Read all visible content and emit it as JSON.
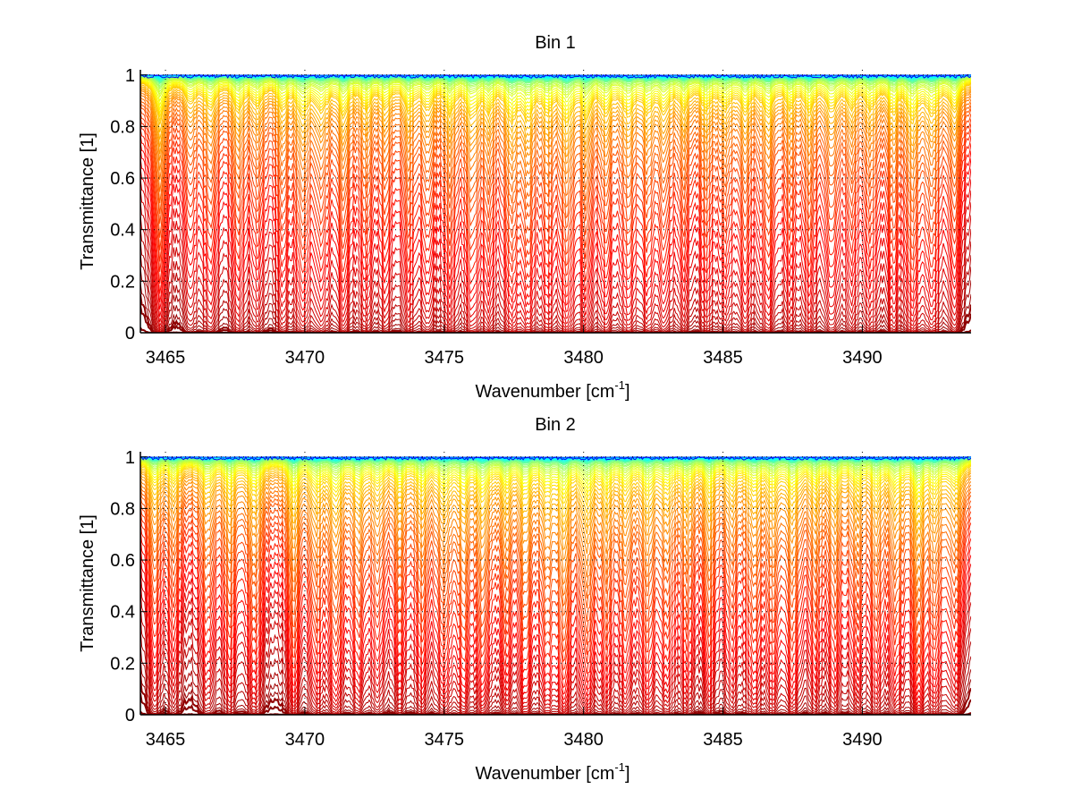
{
  "figure": {
    "background": "#ffffff"
  },
  "chart_data": [
    {
      "type": "line",
      "title": "Bin 1",
      "xlabel": "Wavenumber [cm^-1]",
      "xlabel_base": "Wavenumber [cm",
      "xlabel_sup": "-1",
      "xlabel_end": "]",
      "ylabel": "Transmittance [1]",
      "xlim": [
        3464.1,
        3493.9
      ],
      "ylim": [
        0,
        1.02
      ],
      "xticks": [
        3465,
        3470,
        3475,
        3480,
        3485,
        3490
      ],
      "xtick_labels": [
        "3465",
        "3470",
        "3475",
        "3480",
        "3485",
        "3490"
      ],
      "yticks": [
        0,
        0.2,
        0.4,
        0.6,
        0.8,
        1
      ],
      "ytick_labels": [
        "0",
        "0.2",
        "0.4",
        "0.6",
        "0.8",
        "1"
      ],
      "grid": "dotted",
      "legend": "none",
      "series_count": 60,
      "colormap": "jet (dark red = most absorbing, blue = least absorbing)",
      "colormap_stops": [
        "#00007f",
        "#0000ff",
        "#00ffff",
        "#7fff7f",
        "#ffff00",
        "#ff7f00",
        "#ff0000",
        "#7f0000"
      ],
      "line_centers": [
        3464.8,
        3465.9,
        3466.6,
        3467.6,
        3468.3,
        3469.2,
        3469.9,
        3470.6,
        3471.4,
        3472.2,
        3472.9,
        3473.7,
        3474.4,
        3475.2,
        3476.0,
        3476.6,
        3477.4,
        3478.0,
        3478.7,
        3479.4,
        3480.1,
        3480.8,
        3481.6,
        3482.3,
        3482.9,
        3483.6,
        3484.4,
        3485.1,
        3485.8,
        3486.6,
        3487.4,
        3488.1,
        3488.9,
        3489.6,
        3490.3,
        3491.1,
        3491.8,
        3492.5,
        3493.3
      ],
      "line_strengths": [
        1.6,
        0.8,
        1.0,
        1.1,
        0.9,
        1.0,
        1.3,
        1.1,
        1.2,
        1.0,
        0.9,
        1.0,
        0.9,
        1.1,
        1.3,
        1.0,
        1.4,
        1.3,
        1.0,
        1.5,
        1.3,
        1.1,
        1.2,
        1.0,
        1.1,
        1.0,
        1.0,
        0.9,
        1.1,
        1.3,
        0.9,
        1.1,
        1.0,
        0.9,
        1.0,
        1.1,
        1.4,
        1.2,
        1.1
      ],
      "continuum_levels": [
        0.0,
        0.01,
        0.02,
        0.035,
        0.06,
        0.09,
        0.12,
        0.16,
        0.2,
        0.25,
        0.3,
        0.35,
        0.4,
        0.45,
        0.5,
        0.54,
        0.58,
        0.62,
        0.66,
        0.69,
        0.72,
        0.75,
        0.78,
        0.8,
        0.82,
        0.84,
        0.86,
        0.875,
        0.89,
        0.9,
        0.91,
        0.92,
        0.93,
        0.94,
        0.945,
        0.95,
        0.955,
        0.96,
        0.965,
        0.97,
        0.975,
        0.978,
        0.981,
        0.984,
        0.986,
        0.988,
        0.99,
        0.991,
        0.992,
        0.993,
        0.994,
        0.995,
        0.996,
        0.997,
        0.998,
        0.9985,
        0.999,
        0.9993,
        0.9996,
        1.0
      ]
    },
    {
      "type": "line",
      "title": "Bin 2",
      "xlabel": "Wavenumber [cm^-1]",
      "xlabel_base": "Wavenumber [cm",
      "xlabel_sup": "-1",
      "xlabel_end": "]",
      "ylabel": "Transmittance [1]",
      "xlim": [
        3464.1,
        3493.9
      ],
      "ylim": [
        0,
        1.02
      ],
      "xticks": [
        3465,
        3470,
        3475,
        3480,
        3485,
        3490
      ],
      "xtick_labels": [
        "3465",
        "3470",
        "3475",
        "3480",
        "3485",
        "3490"
      ],
      "yticks": [
        0,
        0.2,
        0.4,
        0.6,
        0.8,
        1
      ],
      "ytick_labels": [
        "0",
        "0.2",
        "0.4",
        "0.6",
        "0.8",
        "1"
      ],
      "grid": "dotted",
      "legend": "none",
      "series_count": 60,
      "colormap": "jet (dark red = most absorbing, blue = least absorbing)",
      "colormap_stops": [
        "#00007f",
        "#0000ff",
        "#00ffff",
        "#7fff7f",
        "#ffff00",
        "#ff7f00",
        "#ff0000",
        "#7f0000"
      ],
      "line_centers": [
        3464.6,
        3465.3,
        3466.5,
        3467.3,
        3468.2,
        3469.6,
        3470.4,
        3471.1,
        3471.9,
        3472.6,
        3473.4,
        3474.2,
        3475.0,
        3475.7,
        3476.4,
        3477.2,
        3477.9,
        3478.7,
        3479.3,
        3480.1,
        3480.8,
        3481.5,
        3482.3,
        3483.0,
        3483.7,
        3484.5,
        3485.3,
        3486.1,
        3486.8,
        3487.5,
        3488.3,
        3489.0,
        3489.8,
        3490.5,
        3491.2,
        3492.0,
        3492.6,
        3493.3
      ],
      "line_strengths": [
        1.0,
        0.8,
        0.9,
        1.0,
        1.2,
        1.4,
        1.0,
        1.3,
        1.0,
        0.9,
        1.0,
        1.0,
        1.1,
        1.1,
        1.3,
        1.0,
        1.2,
        1.1,
        1.4,
        1.4,
        1.1,
        1.0,
        1.2,
        1.0,
        1.0,
        1.1,
        0.9,
        1.1,
        1.0,
        1.2,
        1.0,
        1.0,
        0.9,
        1.0,
        1.1,
        1.6,
        1.1,
        1.0
      ],
      "continuum_levels": [
        0.0,
        0.01,
        0.025,
        0.04,
        0.06,
        0.09,
        0.13,
        0.17,
        0.21,
        0.26,
        0.3,
        0.34,
        0.38,
        0.42,
        0.46,
        0.5,
        0.54,
        0.58,
        0.62,
        0.65,
        0.68,
        0.71,
        0.74,
        0.77,
        0.79,
        0.81,
        0.83,
        0.85,
        0.87,
        0.885,
        0.9,
        0.91,
        0.92,
        0.93,
        0.94,
        0.947,
        0.953,
        0.958,
        0.963,
        0.968,
        0.972,
        0.976,
        0.979,
        0.982,
        0.985,
        0.987,
        0.989,
        0.991,
        0.992,
        0.993,
        0.994,
        0.995,
        0.996,
        0.997,
        0.998,
        0.9985,
        0.999,
        0.9993,
        0.9996,
        1.0
      ]
    }
  ]
}
